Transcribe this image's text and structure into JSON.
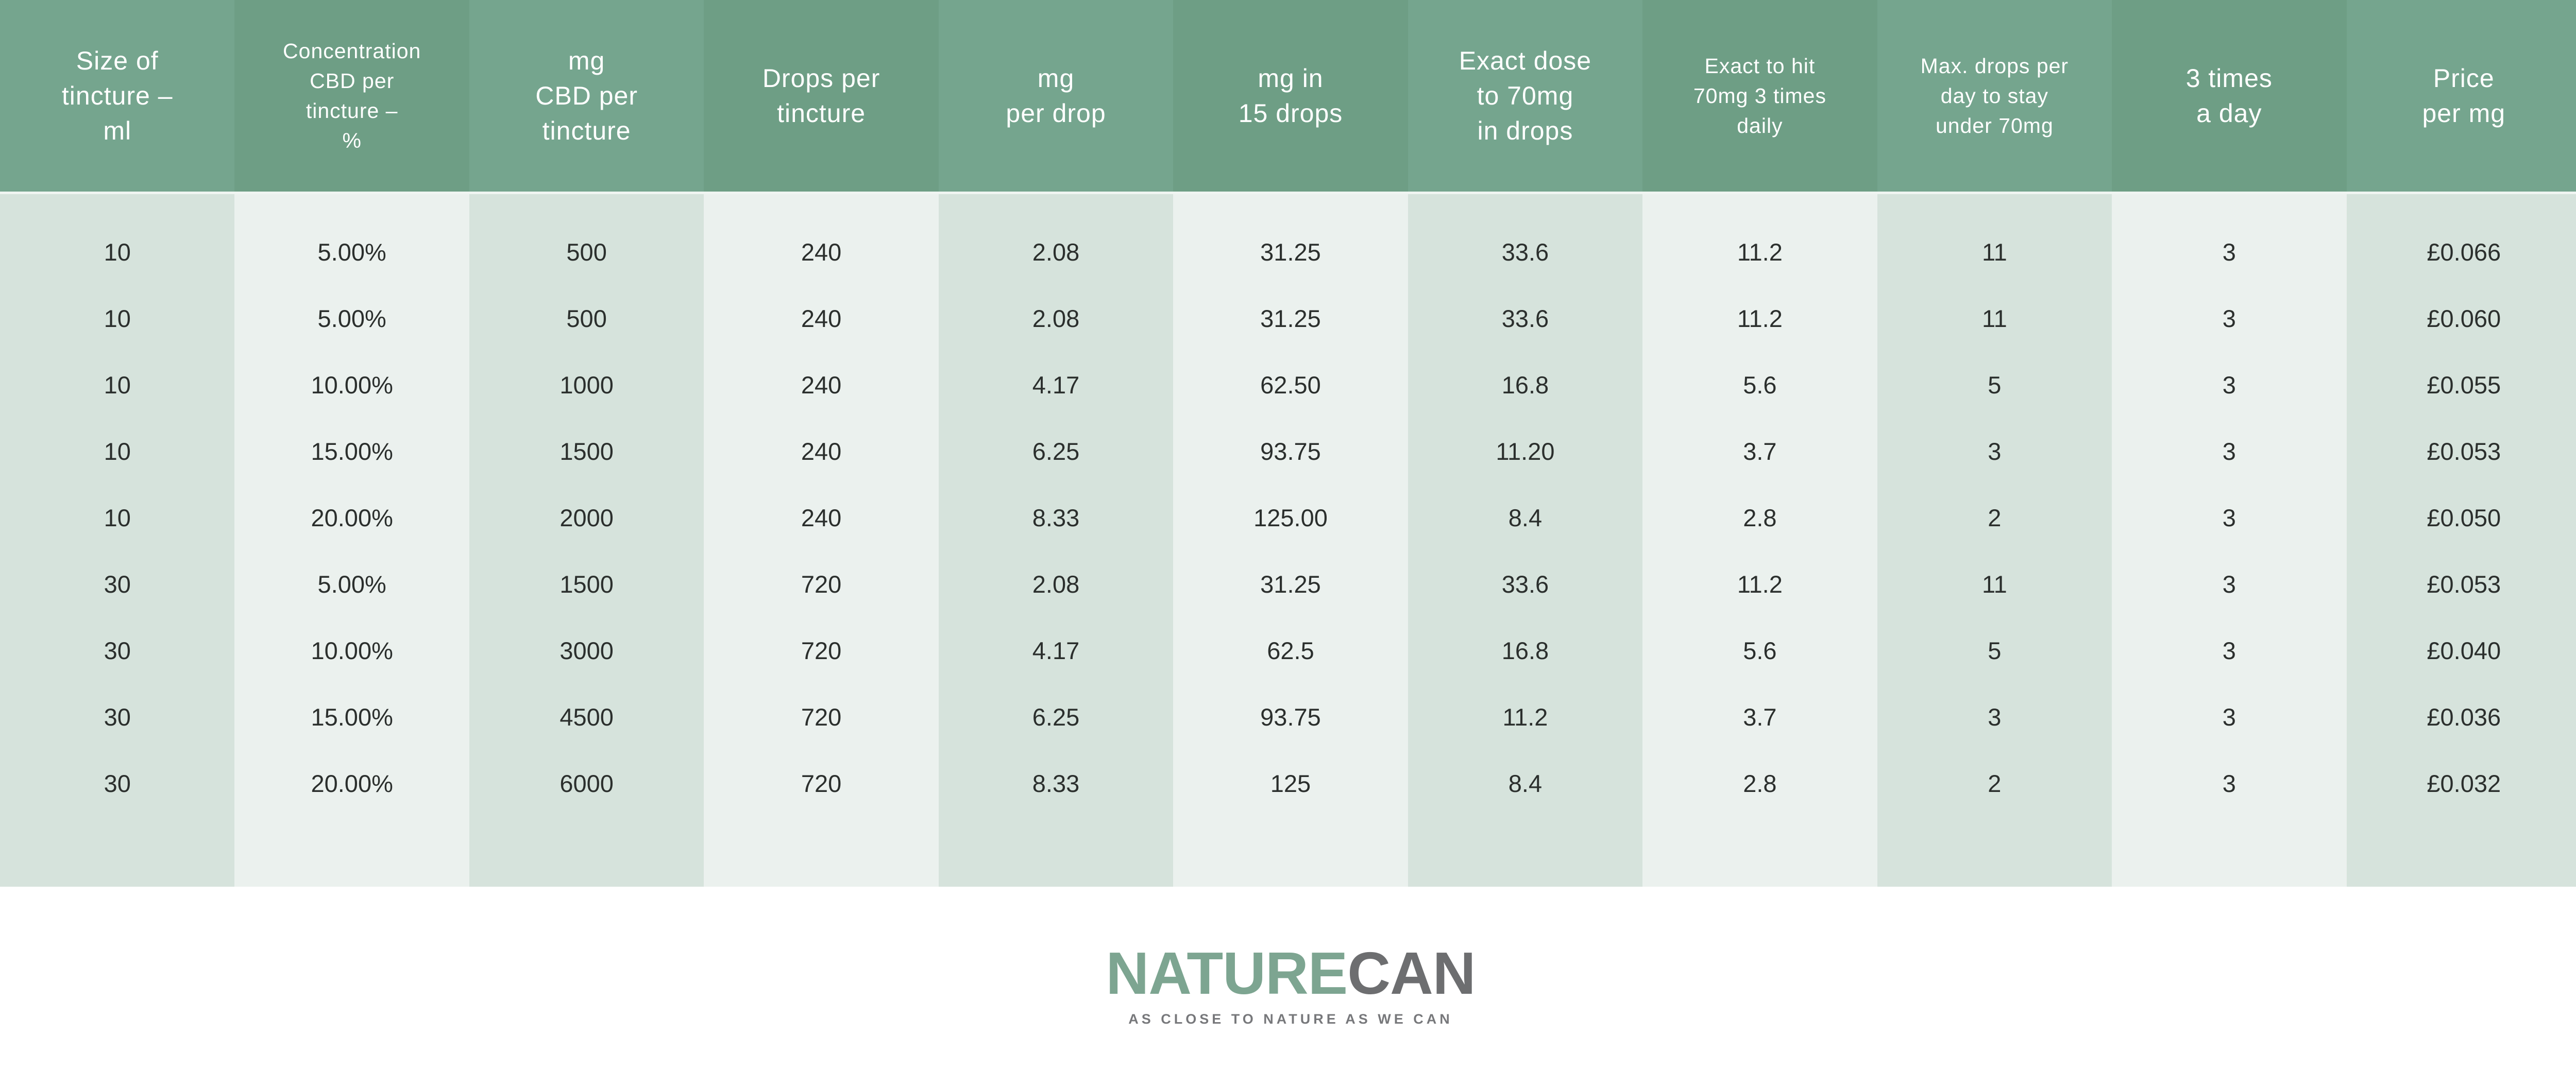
{
  "chart_data": {
    "type": "table",
    "columns": [
      {
        "header": [
          "Size of",
          "tincture –",
          "ml"
        ],
        "values": [
          "10",
          "10",
          "10",
          "10",
          "10",
          "30",
          "30",
          "30",
          "30"
        ]
      },
      {
        "header": [
          "Concentration",
          "CBD per",
          "tincture –",
          "%"
        ],
        "values": [
          "5.00%",
          "5.00%",
          "10.00%",
          "15.00%",
          "20.00%",
          "5.00%",
          "10.00%",
          "15.00%",
          "20.00%"
        ]
      },
      {
        "header": [
          "mg",
          "CBD per",
          "tincture"
        ],
        "values": [
          "500",
          "500",
          "1000",
          "1500",
          "2000",
          "1500",
          "3000",
          "4500",
          "6000"
        ]
      },
      {
        "header": [
          "Drops per",
          "tincture"
        ],
        "values": [
          "240",
          "240",
          "240",
          "240",
          "240",
          "720",
          "720",
          "720",
          "720"
        ]
      },
      {
        "header": [
          "mg",
          "per drop"
        ],
        "values": [
          "2.08",
          "2.08",
          "4.17",
          "6.25",
          "8.33",
          "2.08",
          "4.17",
          "6.25",
          "8.33"
        ]
      },
      {
        "header": [
          "mg in",
          "15 drops"
        ],
        "values": [
          "31.25",
          "31.25",
          "62.50",
          "93.75",
          "125.00",
          "31.25",
          "62.5",
          "93.75",
          "125"
        ]
      },
      {
        "header": [
          "Exact dose",
          "to 70mg",
          "in drops"
        ],
        "values": [
          "33.6",
          "33.6",
          "16.8",
          "11.20",
          "8.4",
          "33.6",
          "16.8",
          "11.2",
          "8.4"
        ]
      },
      {
        "header": [
          "Exact to hit",
          "70mg 3 times",
          "daily"
        ],
        "values": [
          "11.2",
          "11.2",
          "5.6",
          "3.7",
          "2.8",
          "11.2",
          "5.6",
          "3.7",
          "2.8"
        ]
      },
      {
        "header": [
          "Max. drops per",
          "day to stay",
          "under 70mg"
        ],
        "values": [
          "11",
          "11",
          "5",
          "3",
          "2",
          "11",
          "5",
          "3",
          "2"
        ]
      },
      {
        "header": [
          "3 times",
          "a day"
        ],
        "values": [
          "3",
          "3",
          "3",
          "3",
          "3",
          "3",
          "3",
          "3",
          "3"
        ]
      },
      {
        "header": [
          "Price",
          "per mg"
        ],
        "values": [
          "£0.066",
          "£0.060",
          "£0.055",
          "£0.053",
          "£0.050",
          "£0.053",
          "£0.040",
          "£0.036",
          "£0.032"
        ]
      }
    ]
  },
  "logo": {
    "brand_primary": "NATURE",
    "brand_secondary": "CAN",
    "tagline": "AS CLOSE TO NATURE AS WE CAN"
  },
  "colors": {
    "header_green_odd": "#75a58e",
    "header_green_even": "#6e9e85",
    "body_stripe_odd": "#d6e3dc",
    "body_stripe_even": "#ebf1ee",
    "logo_green": "#7da591",
    "logo_gray": "#6d6e70",
    "text_dark": "#2b2f2d"
  }
}
